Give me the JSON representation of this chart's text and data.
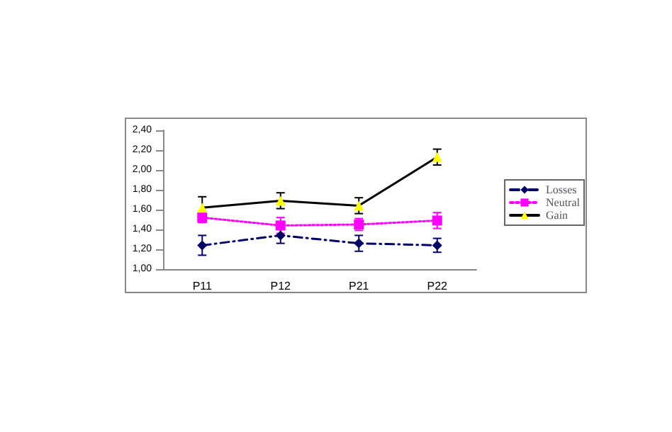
{
  "chart_data": {
    "type": "line",
    "categories": [
      "P11",
      "P12",
      "P21",
      "P22"
    ],
    "series": [
      {
        "name": "Losses",
        "color": "#000066",
        "values": [
          1.24,
          1.34,
          1.26,
          1.24
        ],
        "errors": [
          0.1,
          0.08,
          0.08,
          0.07
        ],
        "marker": "diamond",
        "line_style": "dashed"
      },
      {
        "name": "Neutral",
        "color": "#ff00ff",
        "values": [
          1.52,
          1.44,
          1.45,
          1.49
        ],
        "errors": [
          0.05,
          0.08,
          0.06,
          0.08
        ],
        "marker": "square",
        "line_style": "dotted"
      },
      {
        "name": "Gain",
        "color": "#000000",
        "values": [
          1.62,
          1.69,
          1.64,
          2.13
        ],
        "errors": [
          0.11,
          0.08,
          0.08,
          0.08
        ],
        "marker": "triangle",
        "line_style": "solid"
      }
    ],
    "ylim": [
      1.0,
      2.4
    ],
    "yticks": [
      {
        "value": 1.0,
        "label": "1,00"
      },
      {
        "value": 1.2,
        "label": "1,20"
      },
      {
        "value": 1.4,
        "label": "1,40"
      },
      {
        "value": 1.6,
        "label": "1,60"
      },
      {
        "value": 1.8,
        "label": "1,80"
      },
      {
        "value": 2.0,
        "label": "2,00"
      },
      {
        "value": 2.2,
        "label": "2,20"
      },
      {
        "value": 2.4,
        "label": "2,40"
      }
    ],
    "grid": false,
    "legend": "right"
  }
}
